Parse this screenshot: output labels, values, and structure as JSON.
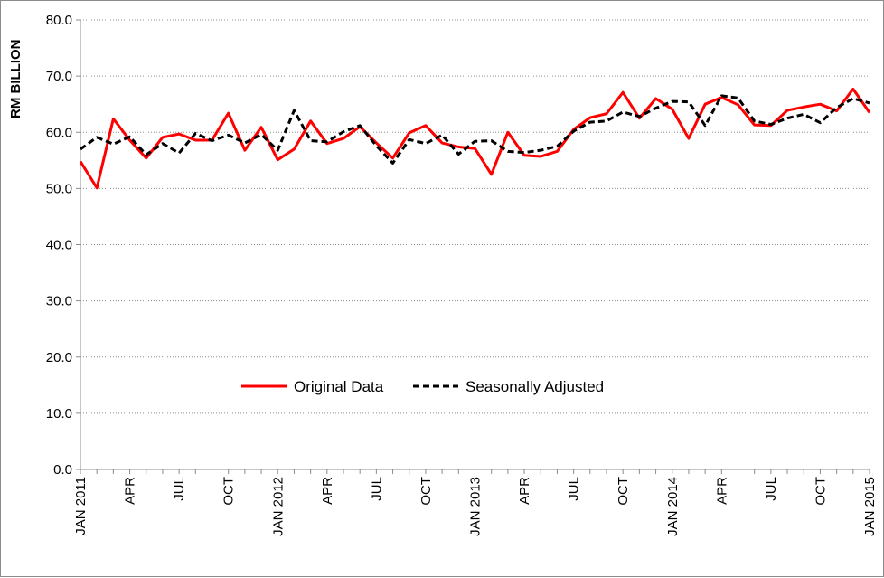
{
  "chart_data": {
    "type": "line",
    "title": "",
    "xlabel": "",
    "ylabel": "RM BILLION",
    "ylim": [
      0,
      80
    ],
    "yticks": [
      "0.0",
      "10.0",
      "20.0",
      "30.0",
      "40.0",
      "50.0",
      "60.0",
      "70.0",
      "80.0"
    ],
    "grid": "horizontal-dotted",
    "legend_position": "center",
    "x_tick_labels": [
      {
        "index": 0,
        "label": "JAN 2011"
      },
      {
        "index": 3,
        "label": "APR"
      },
      {
        "index": 6,
        "label": "JUL"
      },
      {
        "index": 9,
        "label": "OCT"
      },
      {
        "index": 12,
        "label": "JAN 2012"
      },
      {
        "index": 15,
        "label": "APR"
      },
      {
        "index": 18,
        "label": "JUL"
      },
      {
        "index": 21,
        "label": "OCT"
      },
      {
        "index": 24,
        "label": "JAN 2013"
      },
      {
        "index": 27,
        "label": "APR"
      },
      {
        "index": 30,
        "label": "JUL"
      },
      {
        "index": 33,
        "label": "OCT"
      },
      {
        "index": 36,
        "label": "JAN 2014"
      },
      {
        "index": 39,
        "label": "APR"
      },
      {
        "index": 42,
        "label": "JUL"
      },
      {
        "index": 45,
        "label": "OCT"
      },
      {
        "index": 48,
        "label": "JAN 2015"
      }
    ],
    "series": [
      {
        "name": "Original Data",
        "color": "#ff0000",
        "style": "solid",
        "values": [
          54.8,
          50.1,
          62.4,
          58.6,
          55.4,
          59.1,
          59.7,
          58.6,
          58.6,
          63.4,
          56.8,
          60.9,
          55.1,
          57.0,
          62.0,
          58.0,
          58.9,
          61.0,
          58.1,
          55.4,
          59.9,
          61.2,
          58.1,
          57.4,
          57.1,
          52.5,
          60.0,
          55.9,
          55.7,
          56.6,
          60.5,
          62.6,
          63.3,
          67.1,
          62.5,
          66.0,
          64.1,
          58.9,
          65.0,
          66.2,
          64.9,
          61.3,
          61.2,
          63.9,
          64.5,
          65.0,
          63.8,
          67.7,
          63.5
        ]
      },
      {
        "name": "Seasonally Adjusted",
        "color": "#000000",
        "style": "dashed",
        "values": [
          57.0,
          59.1,
          57.9,
          59.2,
          56.0,
          58.0,
          56.3,
          59.8,
          58.5,
          59.5,
          58.1,
          59.6,
          56.8,
          63.9,
          58.5,
          58.3,
          60.1,
          61.2,
          57.6,
          54.5,
          58.7,
          58.0,
          59.5,
          56.1,
          58.4,
          58.5,
          56.6,
          56.4,
          56.8,
          57.5,
          60.2,
          61.8,
          62.0,
          63.6,
          62.8,
          64.3,
          65.5,
          65.4,
          61.2,
          66.5,
          66.1,
          62.0,
          61.4,
          62.5,
          63.2,
          61.7,
          64.4,
          66.0,
          65.2
        ]
      }
    ]
  }
}
